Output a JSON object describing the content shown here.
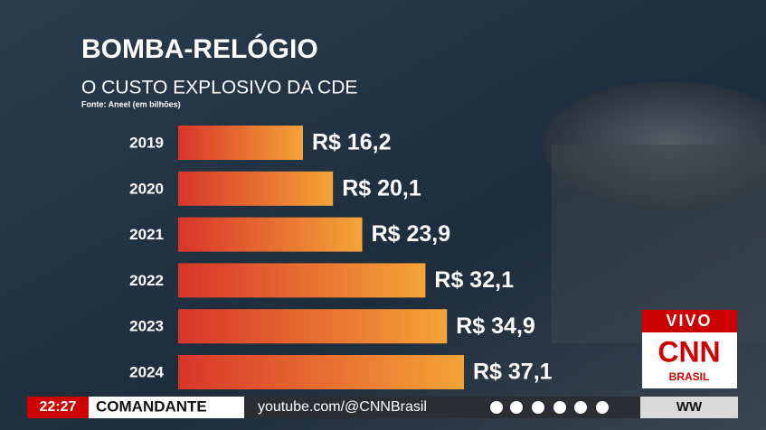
{
  "chart_data": {
    "type": "bar",
    "orientation": "horizontal",
    "title": "BOMBA-RELÓGIO",
    "subtitle": "O CUSTO EXPLOSIVO DA CDE",
    "source": "Fonte: Aneel (em bilhões)",
    "categories": [
      "2019",
      "2020",
      "2021",
      "2022",
      "2023",
      "2024"
    ],
    "values": [
      16.2,
      20.1,
      23.9,
      32.1,
      34.9,
      37.1
    ],
    "value_labels": [
      "R$ 16,2",
      "R$ 20,1",
      "R$ 23,9",
      "R$ 32,1",
      "R$ 34,9",
      "R$ 37,1"
    ],
    "colors": [
      "#d8352a",
      "#f5a437"
    ]
  },
  "overlay": {
    "live": "VIVO",
    "logo": "CNN",
    "logo_sub": "BRASIL",
    "time": "22:27",
    "ticker": "COMANDANTE",
    "url": "youtube.com/@CNNBrasil",
    "program": "WW"
  }
}
